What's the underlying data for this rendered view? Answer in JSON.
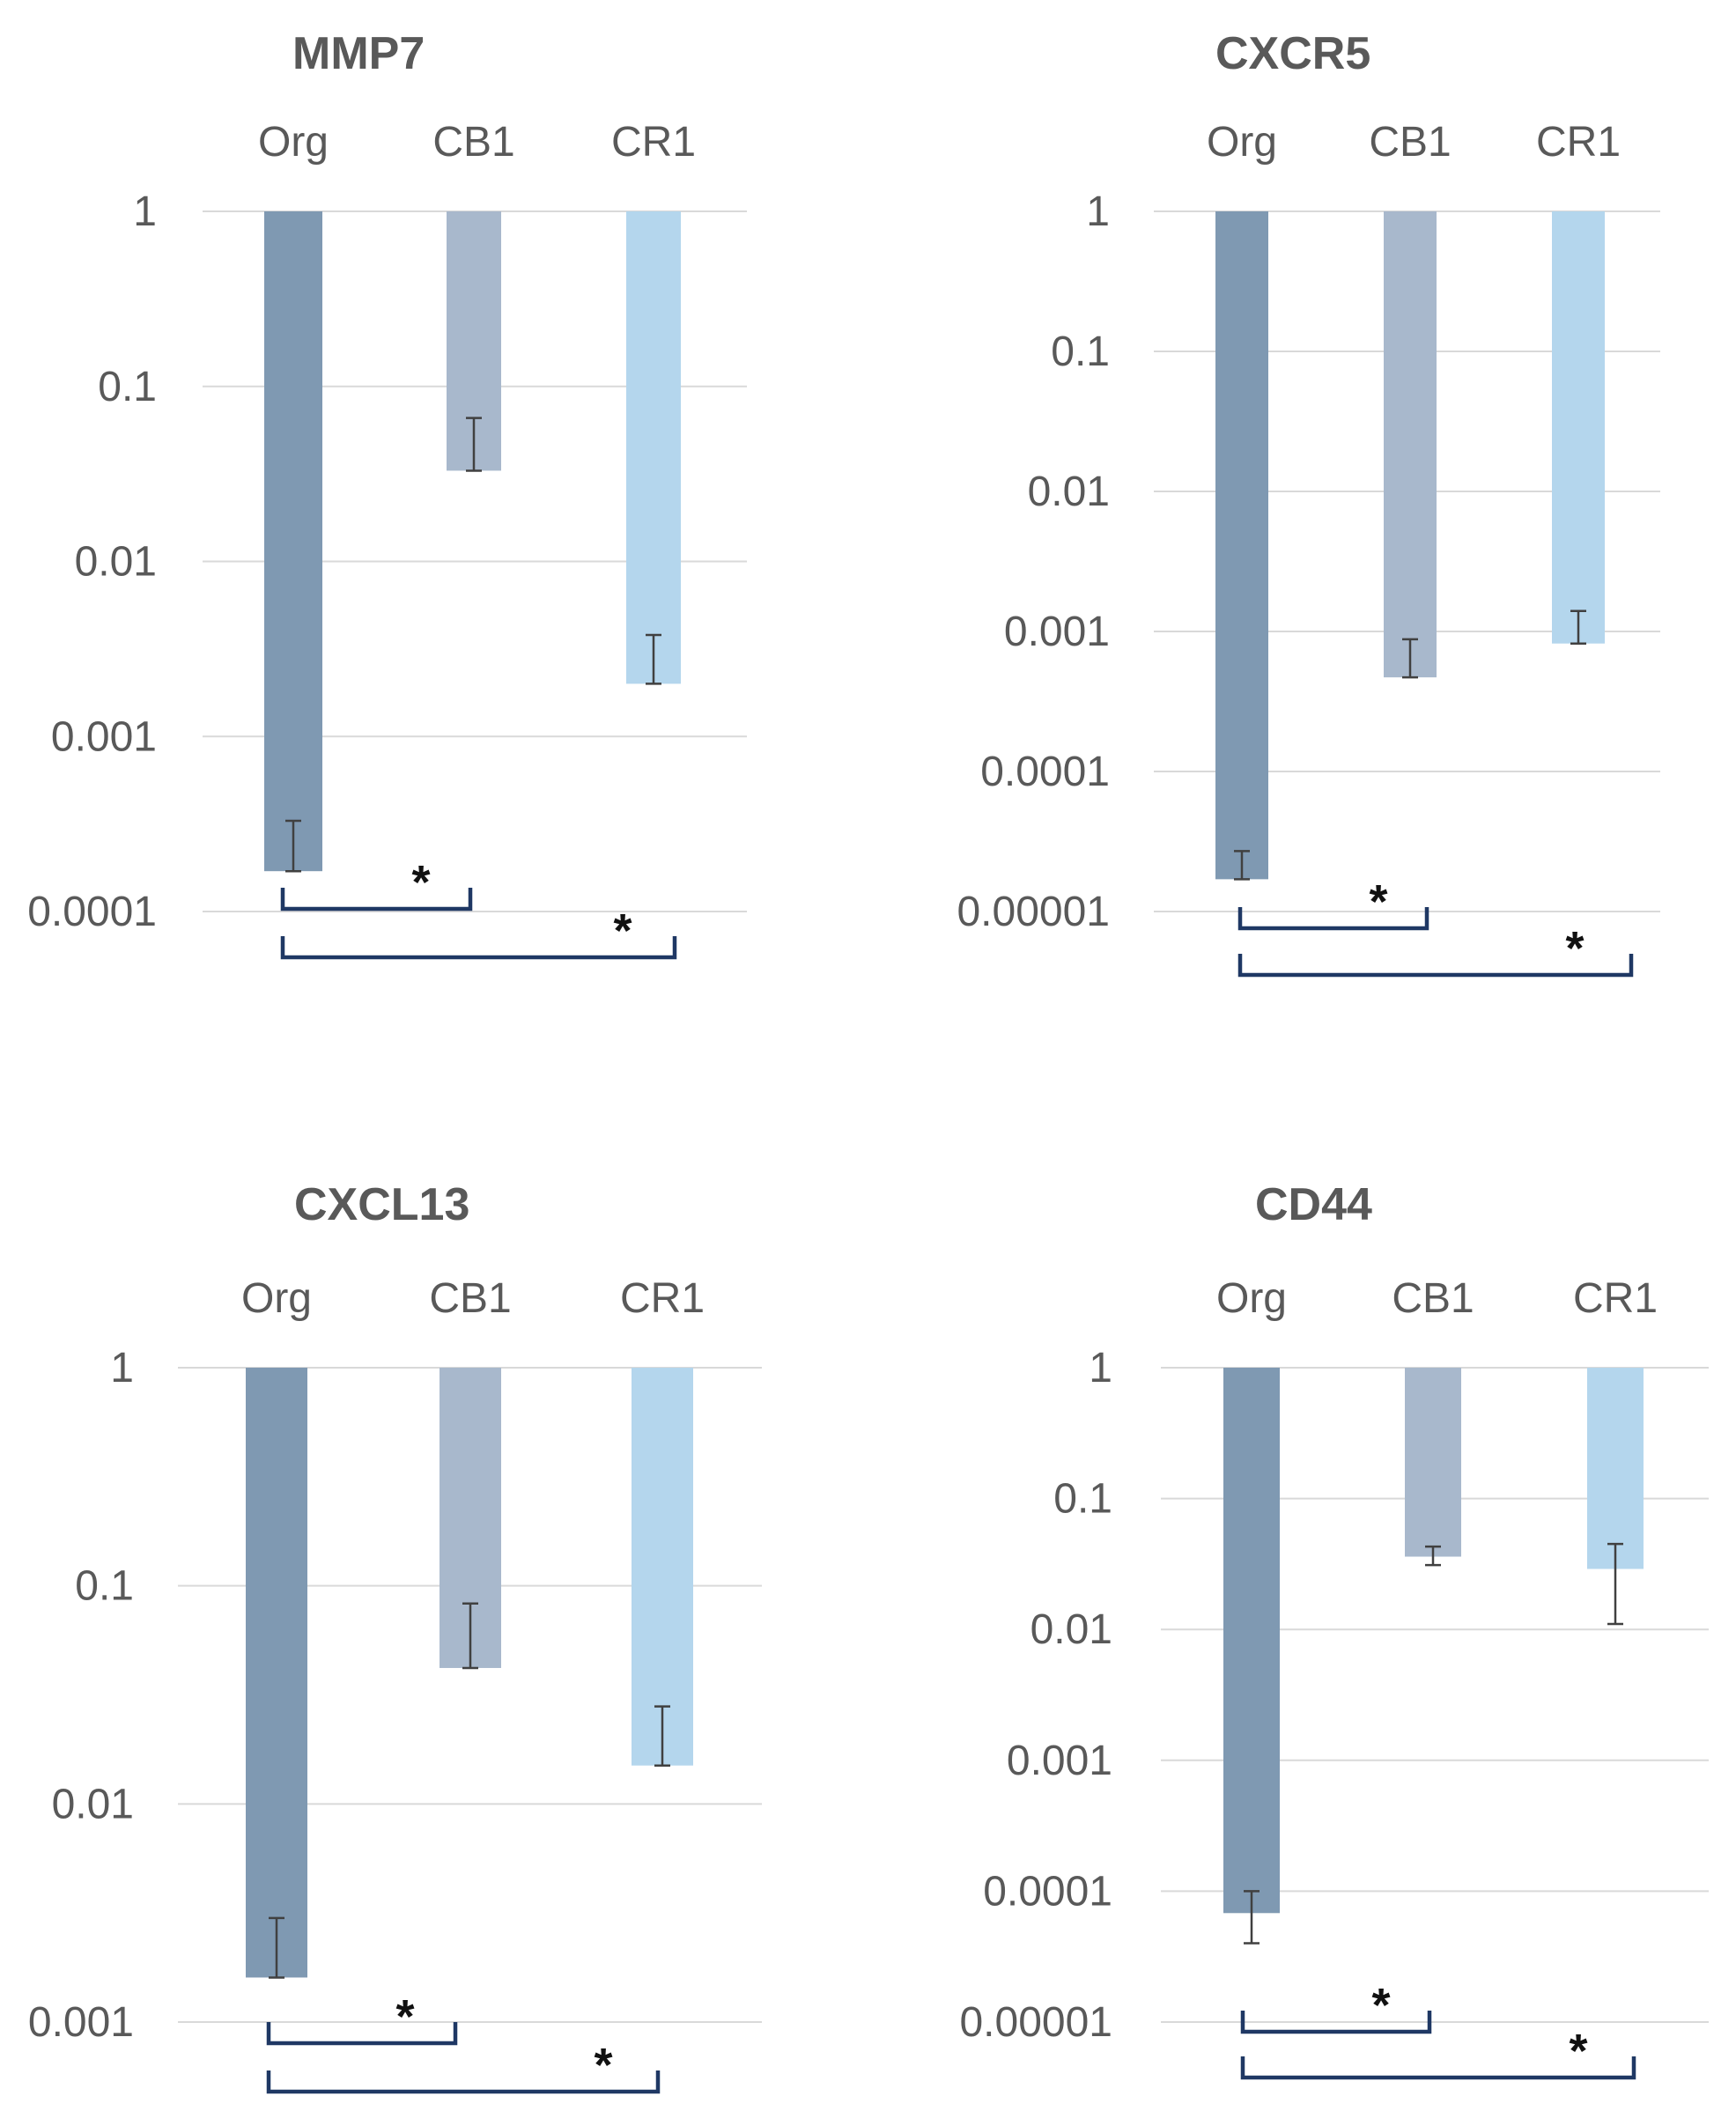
{
  "colors": {
    "Org": "#7f99b2",
    "CB1": "#a8b8cc",
    "CR1": "#b4d6ed",
    "grid": "#d9d9d9",
    "bracket": "#1f3864",
    "text": "#595959"
  },
  "chart_data": [
    {
      "type": "bar",
      "title": "MMP7",
      "scale": "log",
      "orientation": "bars hang from top (reversed log axis)",
      "categories": [
        "Org",
        "CB1",
        "CR1"
      ],
      "values": [
        0.00017,
        0.033,
        0.002
      ],
      "error_upper": [
        0.00033,
        0.066,
        0.0038
      ],
      "ylim": [
        0.0001,
        1
      ],
      "yticks": [
        "1",
        "0.1",
        "0.01",
        "0.001",
        "0.0001"
      ],
      "significance": [
        {
          "from": "Org",
          "to": "CB1",
          "label": "*"
        },
        {
          "from": "Org",
          "to": "CR1",
          "label": "*"
        }
      ]
    },
    {
      "type": "bar",
      "title": "CXCR5",
      "scale": "log",
      "orientation": "bars hang from top (reversed log axis)",
      "categories": [
        "Org",
        "CB1",
        "CR1"
      ],
      "values": [
        1.7e-05,
        0.00047,
        0.00082
      ],
      "error_upper": [
        2.7e-05,
        0.00088,
        0.0014
      ],
      "ylim": [
        1e-05,
        1
      ],
      "yticks": [
        "1",
        "0.1",
        "0.01",
        "0.001",
        "0.0001",
        "0.00001"
      ],
      "significance": [
        {
          "from": "Org",
          "to": "CB1",
          "label": "*"
        },
        {
          "from": "Org",
          "to": "CR1",
          "label": "*"
        }
      ]
    },
    {
      "type": "bar",
      "title": "CXCL13",
      "scale": "log",
      "orientation": "bars hang from top (reversed log axis)",
      "categories": [
        "Org",
        "CB1",
        "CR1"
      ],
      "values": [
        0.0016,
        0.042,
        0.015
      ],
      "error_upper": [
        0.003,
        0.083,
        0.028
      ],
      "ylim": [
        0.001,
        1
      ],
      "yticks": [
        "1",
        "0.1",
        "0.01",
        "0.001"
      ],
      "significance": [
        {
          "from": "Org",
          "to": "CB1",
          "label": "*"
        },
        {
          "from": "Org",
          "to": "CR1",
          "label": "*"
        }
      ]
    },
    {
      "type": "bar",
      "title": "CD44",
      "scale": "log",
      "orientation": "bars hang from top (reversed log axis)",
      "categories": [
        "Org",
        "CB1",
        "CR1"
      ],
      "values": [
        6.8e-05,
        0.036,
        0.029
      ],
      "error_upper": [
        0.0001,
        0.043,
        0.045
      ],
      "error_lower": [
        4e-05,
        0.031,
        0.011
      ],
      "ylim": [
        1e-05,
        1
      ],
      "yticks": [
        "1",
        "0.1",
        "0.01",
        "0.001",
        "0.0001",
        "0.00001"
      ],
      "significance": [
        {
          "from": "Org",
          "to": "CB1",
          "label": "*"
        },
        {
          "from": "Org",
          "to": "CR1",
          "label": "*"
        }
      ]
    }
  ]
}
